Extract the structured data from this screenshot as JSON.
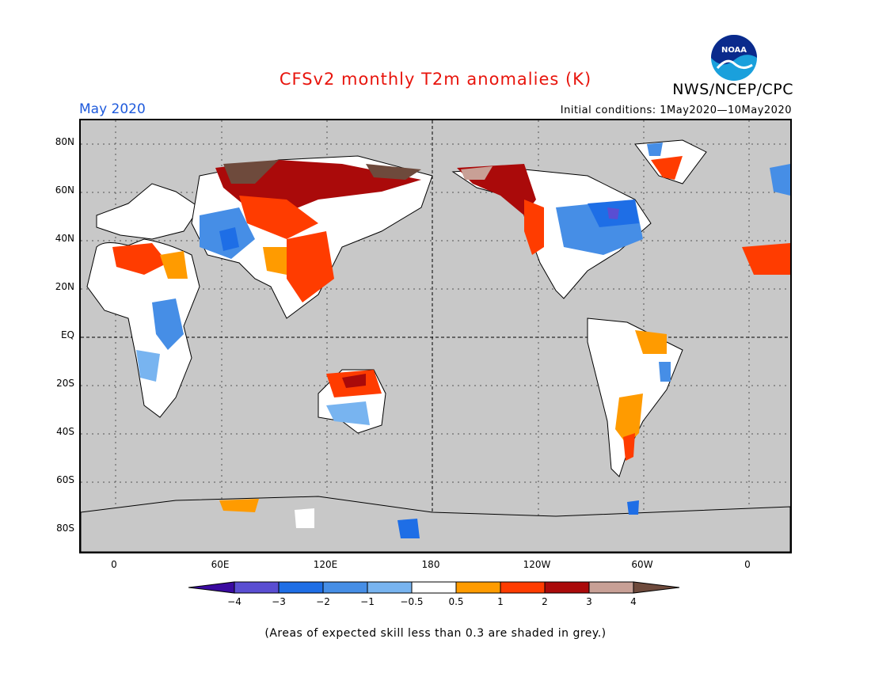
{
  "title": "CFSv2 monthly T2m anomalies (K)",
  "agency": "NWS/NCEP/CPC",
  "logo_text": "NOAA",
  "valid_month": "May 2020",
  "initial_conditions": "Initial conditions: 1May2020—10May2020",
  "lat_labels": [
    "80N",
    "60N",
    "40N",
    "20N",
    "EQ",
    "20S",
    "40S",
    "60S",
    "80S"
  ],
  "lon_labels": [
    "0",
    "60E",
    "120E",
    "180",
    "120W",
    "60W",
    "0"
  ],
  "colorbar": {
    "colors": [
      "#3a0aa0",
      "#5a4ed2",
      "#1e6ee6",
      "#468ee6",
      "#78b4f0",
      "#ffffff",
      "#ff9b00",
      "#ff3c00",
      "#aa0a0a",
      "#c8a096",
      "#6e4a3c"
    ],
    "tick_labels": [
      "−4",
      "−3",
      "−2",
      "−1",
      "−0.5",
      "0.5",
      "1",
      "2",
      "3",
      "4"
    ]
  },
  "note": "(Areas of expected skill less than 0.3 are shaded in grey.)",
  "colors": {
    "title": "#e8140c",
    "month": "#1e5adc",
    "background_grey": "#c8c8c8"
  }
}
